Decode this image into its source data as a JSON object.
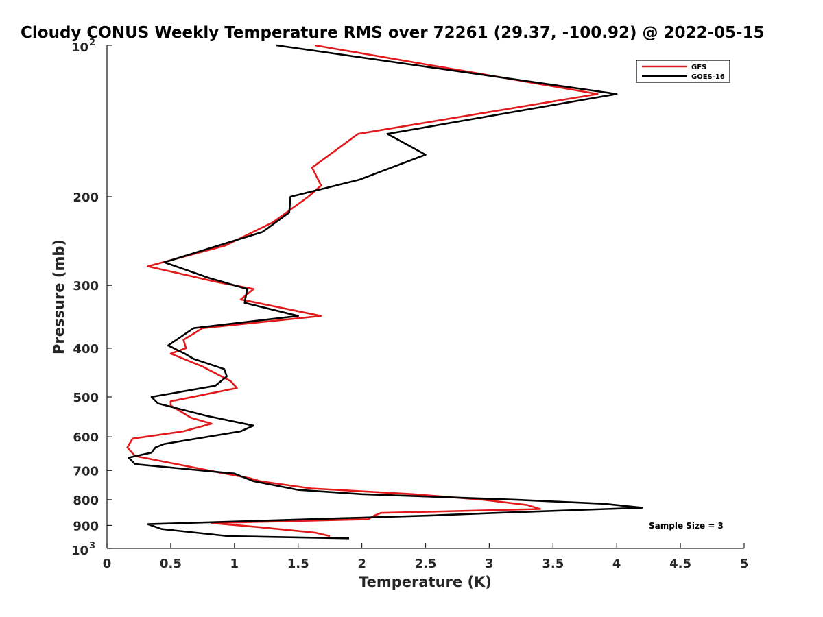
{
  "chart_data": {
    "type": "line",
    "title": "Cloudy CONUS Weekly Temperature RMS over 72261 (29.37, -100.92) @ 2022-05-15",
    "xlabel": "Temperature (K)",
    "ylabel": "Pressure (mb)",
    "xlim": [
      0,
      5
    ],
    "ylim": [
      100,
      1000
    ],
    "yscale": "log",
    "y_reversed": true,
    "xticks": [
      "0",
      "0.5",
      "1",
      "1.5",
      "2",
      "2.5",
      "3",
      "3.5",
      "4",
      "4.5",
      "5"
    ],
    "yticks": [
      {
        "base": "10",
        "exp": "2"
      },
      {
        "label": "200"
      },
      {
        "label": "300"
      },
      {
        "label": "400"
      },
      {
        "label": "500"
      },
      {
        "label": "600"
      },
      {
        "label": "700"
      },
      {
        "label": "800"
      },
      {
        "label": "900"
      },
      {
        "base": "10",
        "exp": "3"
      }
    ],
    "legend_position": "top-right",
    "annotation": "Sample Size = 3",
    "series": [
      {
        "name": "GFS",
        "color": "#e31a1c",
        "points": [
          [
            1.63,
            100
          ],
          [
            3.85,
            125
          ],
          [
            1.97,
            150
          ],
          [
            1.61,
            175
          ],
          [
            1.68,
            190
          ],
          [
            1.58,
            200
          ],
          [
            1.3,
            225
          ],
          [
            0.93,
            250
          ],
          [
            0.32,
            275
          ],
          [
            0.85,
            295
          ],
          [
            1.15,
            305
          ],
          [
            1.05,
            320
          ],
          [
            1.68,
            345
          ],
          [
            0.75,
            365
          ],
          [
            0.6,
            385
          ],
          [
            0.62,
            400
          ],
          [
            0.5,
            410
          ],
          [
            0.75,
            435
          ],
          [
            0.97,
            465
          ],
          [
            1.02,
            480
          ],
          [
            0.5,
            510
          ],
          [
            0.5,
            520
          ],
          [
            0.66,
            550
          ],
          [
            0.82,
            565
          ],
          [
            0.6,
            585
          ],
          [
            0.2,
            605
          ],
          [
            0.16,
            630
          ],
          [
            0.22,
            655
          ],
          [
            0.8,
            700
          ],
          [
            1.12,
            725
          ],
          [
            1.2,
            735
          ],
          [
            1.6,
            760
          ],
          [
            2.4,
            780
          ],
          [
            2.95,
            800
          ],
          [
            3.3,
            820
          ],
          [
            3.4,
            835
          ],
          [
            2.15,
            850
          ],
          [
            2.1,
            860
          ],
          [
            2.05,
            875
          ],
          [
            0.82,
            890
          ],
          [
            1.25,
            910
          ],
          [
            1.63,
            930
          ],
          [
            1.75,
            945
          ]
        ]
      },
      {
        "name": "GOES-16",
        "color": "#000000",
        "points": [
          [
            1.33,
            100
          ],
          [
            4.0,
            125
          ],
          [
            2.2,
            150
          ],
          [
            2.5,
            165
          ],
          [
            1.98,
            185
          ],
          [
            1.44,
            200
          ],
          [
            1.43,
            215
          ],
          [
            1.22,
            235
          ],
          [
            0.45,
            270
          ],
          [
            0.8,
            290
          ],
          [
            1.1,
            305
          ],
          [
            1.08,
            325
          ],
          [
            1.5,
            345
          ],
          [
            0.68,
            365
          ],
          [
            0.48,
            395
          ],
          [
            0.61,
            410
          ],
          [
            0.68,
            420
          ],
          [
            0.92,
            440
          ],
          [
            0.94,
            455
          ],
          [
            0.85,
            475
          ],
          [
            0.35,
            500
          ],
          [
            0.4,
            515
          ],
          [
            0.78,
            545
          ],
          [
            1.15,
            570
          ],
          [
            1.05,
            585
          ],
          [
            0.45,
            620
          ],
          [
            0.38,
            630
          ],
          [
            0.35,
            645
          ],
          [
            0.17,
            660
          ],
          [
            0.22,
            680
          ],
          [
            1.0,
            710
          ],
          [
            1.15,
            735
          ],
          [
            1.5,
            765
          ],
          [
            2.0,
            780
          ],
          [
            3.2,
            800
          ],
          [
            3.9,
            815
          ],
          [
            4.2,
            830
          ],
          [
            3.05,
            850
          ],
          [
            2.55,
            860
          ],
          [
            0.32,
            895
          ],
          [
            0.43,
            915
          ],
          [
            0.95,
            945
          ],
          [
            1.9,
            955
          ]
        ]
      }
    ]
  }
}
